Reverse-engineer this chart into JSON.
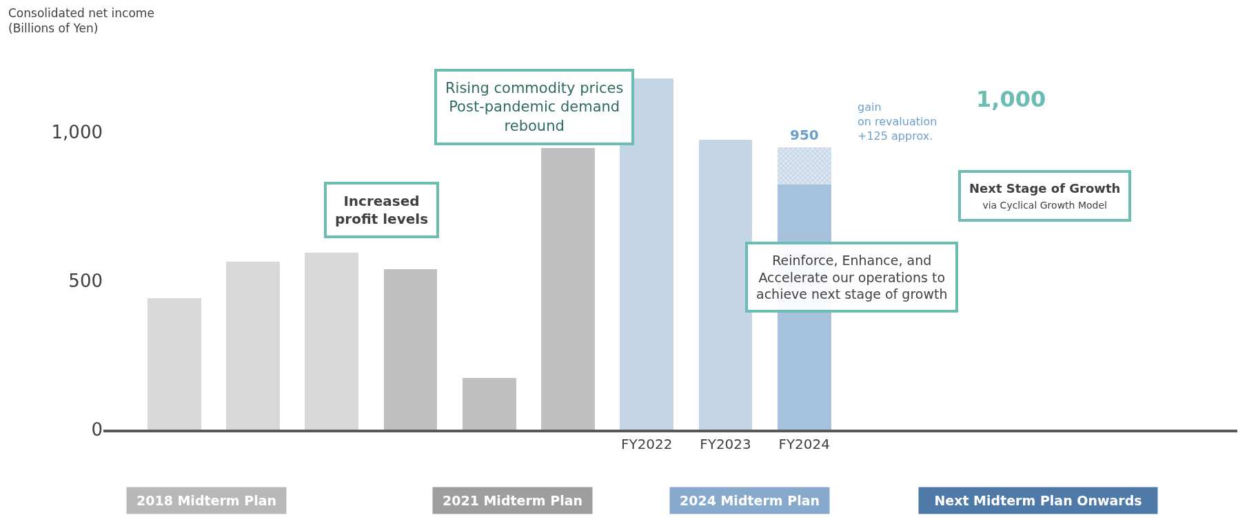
{
  "chart_data": {
    "type": "bar",
    "stacked": true,
    "ylabel": "Consolidated net income\n(Billions of Yen)",
    "categories": [
      null,
      null,
      null,
      null,
      null,
      null,
      "FY2022",
      "FY2023",
      "FY2024",
      null,
      null,
      null,
      null,
      null
    ],
    "series": [
      {
        "colors": [
          "#d9d9d9",
          "#d9d9d9",
          "#d9d9d9",
          "#bfbfbf",
          "#bfbfbf",
          "#bfbfbf",
          "#c4d6e6",
          "#c4d6e6",
          "#a6c2dc",
          null,
          null,
          null,
          null,
          null
        ],
        "values": [
          443,
          564,
          594,
          540,
          173,
          947,
          1180,
          974,
          825,
          null,
          null,
          null,
          null,
          null
        ]
      },
      {
        "color": "#dce6f1",
        "values": [
          null,
          null,
          null,
          null,
          null,
          null,
          null,
          null,
          125,
          null,
          null,
          null,
          null,
          null
        ]
      }
    ],
    "totals": [
      null,
      null,
      null,
      null,
      null,
      null,
      null,
      null,
      "950",
      null,
      null,
      null,
      null,
      null
    ],
    "ylim": [
      0,
      1190
    ],
    "yticks": [
      0,
      500,
      {
        "value": 1000,
        "label": "1,000"
      }
    ],
    "annotations": [
      "Rising commodity prices\nPost-pandemic demand\nrebound",
      "gain\non revaluation\n+125 approx.",
      "1,000",
      "Increased\nprofit levels",
      "Next Stage of Growth\nvia Cyclical Growth Model",
      "Reinforce, Enhance, and\nAccelerate our operations to\nachieve next stage of growth",
      "2018 Midterm Plan",
      "2021 Midterm Plan",
      "2024 Midterm Plan",
      "Next Midterm Plan Onwards"
    ]
  }
}
